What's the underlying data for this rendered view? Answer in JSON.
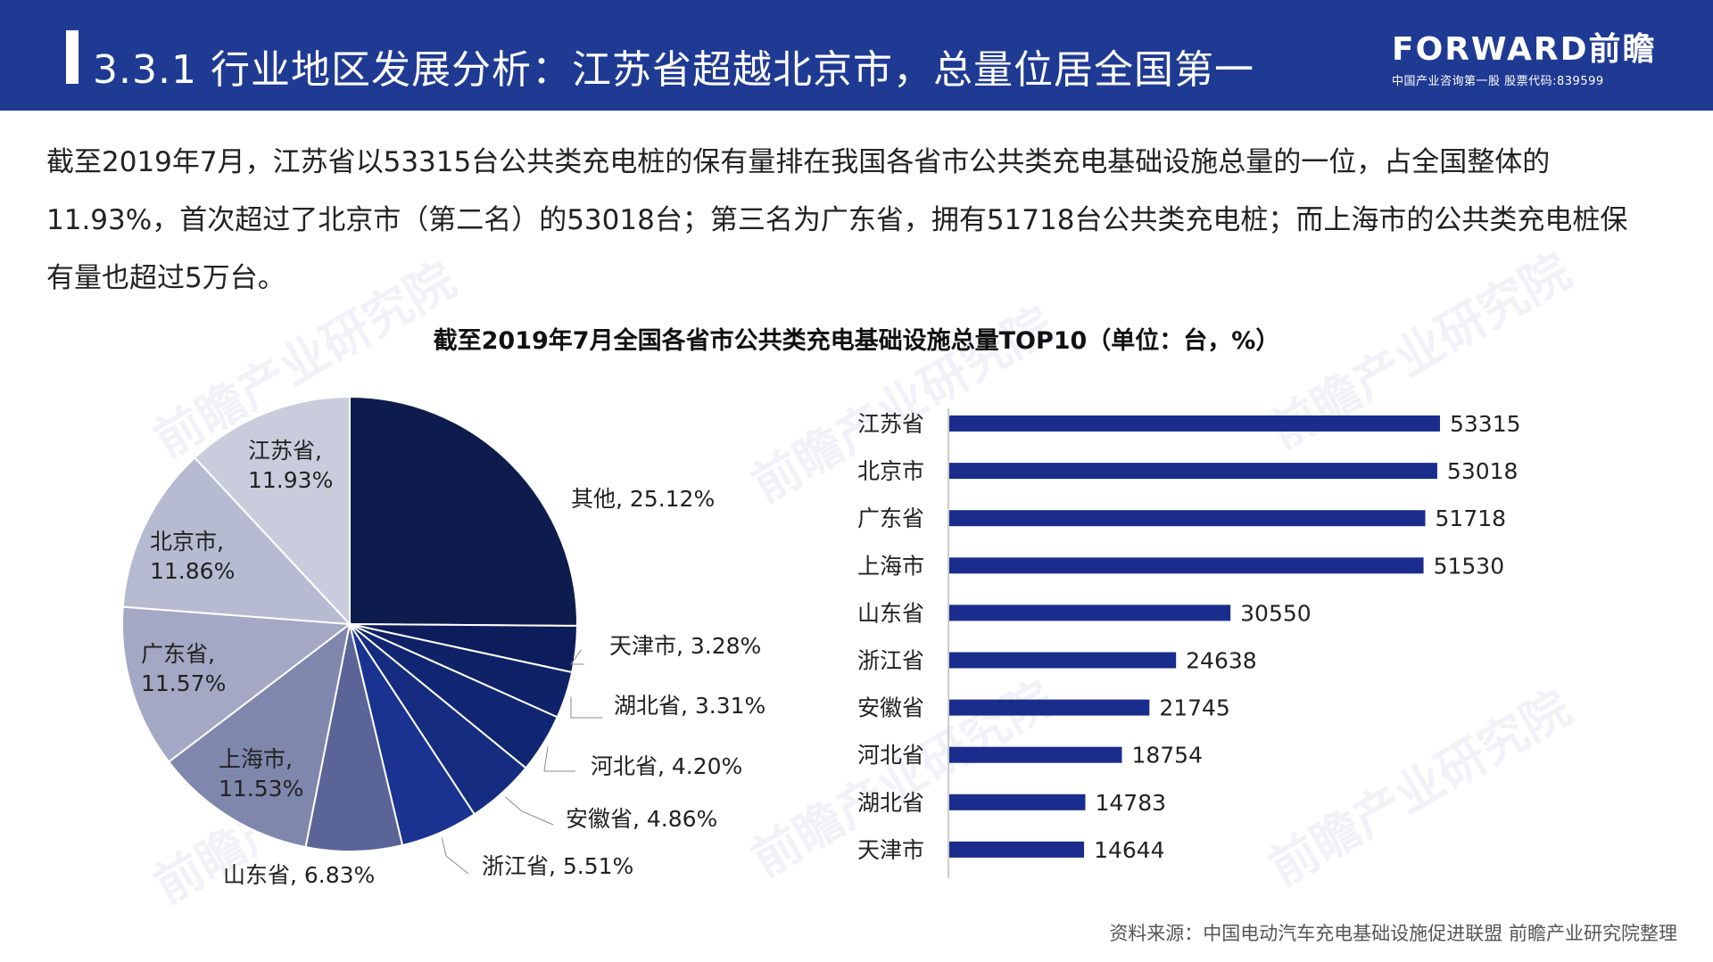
{
  "header": {
    "title": "3.3.1 行业地区发展分析：江苏省超越北京市，总量位居全国第一",
    "logo_brand": "FORWARD前瞻",
    "logo_sub": "中国产业咨询第一股 股票代码:839599"
  },
  "paragraph": "截至2019年7月，江苏省以53315台公共类充电桩的保有量排在我国各省市公共类充电基础设施总量的一位，占全国整体的11.93%，首次超过了北京市（第二名）的53018台；第三名为广东省，拥有51718台公共类充电桩；而上海市的公共类充电桩保有量也超过5万台。",
  "chart_title": "截至2019年7月全国各省市公共类充电基础设施总量TOP10（单位：台，%）",
  "watermark": "前瞻产业研究院",
  "source": "资料来源：中国电动汽车充电基础设施促进联盟 前瞻产业研究院整理",
  "chart_data": [
    {
      "type": "pie",
      "slices": [
        {
          "label": "其他, 25.12%",
          "value": 25.12,
          "color": "#0e1c4d"
        },
        {
          "label": "天津市, 3.28%",
          "value": 3.28,
          "color": "#0d1d5c"
        },
        {
          "label": "湖北省, 3.31%",
          "value": 3.31,
          "color": "#0f2268"
        },
        {
          "label": "河北省, 4.20%",
          "value": 4.2,
          "color": "#112672"
        },
        {
          "label": "安徽省, 4.86%",
          "value": 4.86,
          "color": "#152c80"
        },
        {
          "label": "浙江省, 5.51%",
          "value": 5.51,
          "color": "#1a3391"
        },
        {
          "label": "山东省, 6.83%",
          "value": 6.83,
          "color": "#5a6496"
        },
        {
          "label": "上海市, 11.53%",
          "value": 11.53,
          "color": "#7f87ad"
        },
        {
          "label": "广东省, 11.57%",
          "value": 11.57,
          "color": "#a3a8c4"
        },
        {
          "label": "北京市, 11.86%",
          "value": 11.86,
          "color": "#b7bbd1"
        },
        {
          "label": "江苏省, 11.93%",
          "value": 11.93,
          "color": "#c9ccdd"
        }
      ]
    },
    {
      "type": "bar",
      "orientation": "horizontal",
      "categories": [
        "江苏省",
        "北京市",
        "广东省",
        "上海市",
        "山东省",
        "浙江省",
        "安徽省",
        "河北省",
        "湖北省",
        "天津市"
      ],
      "values": [
        53315,
        53018,
        51718,
        51530,
        30550,
        24638,
        21745,
        18754,
        14783,
        14644
      ],
      "color": "#1a2d8c"
    }
  ]
}
